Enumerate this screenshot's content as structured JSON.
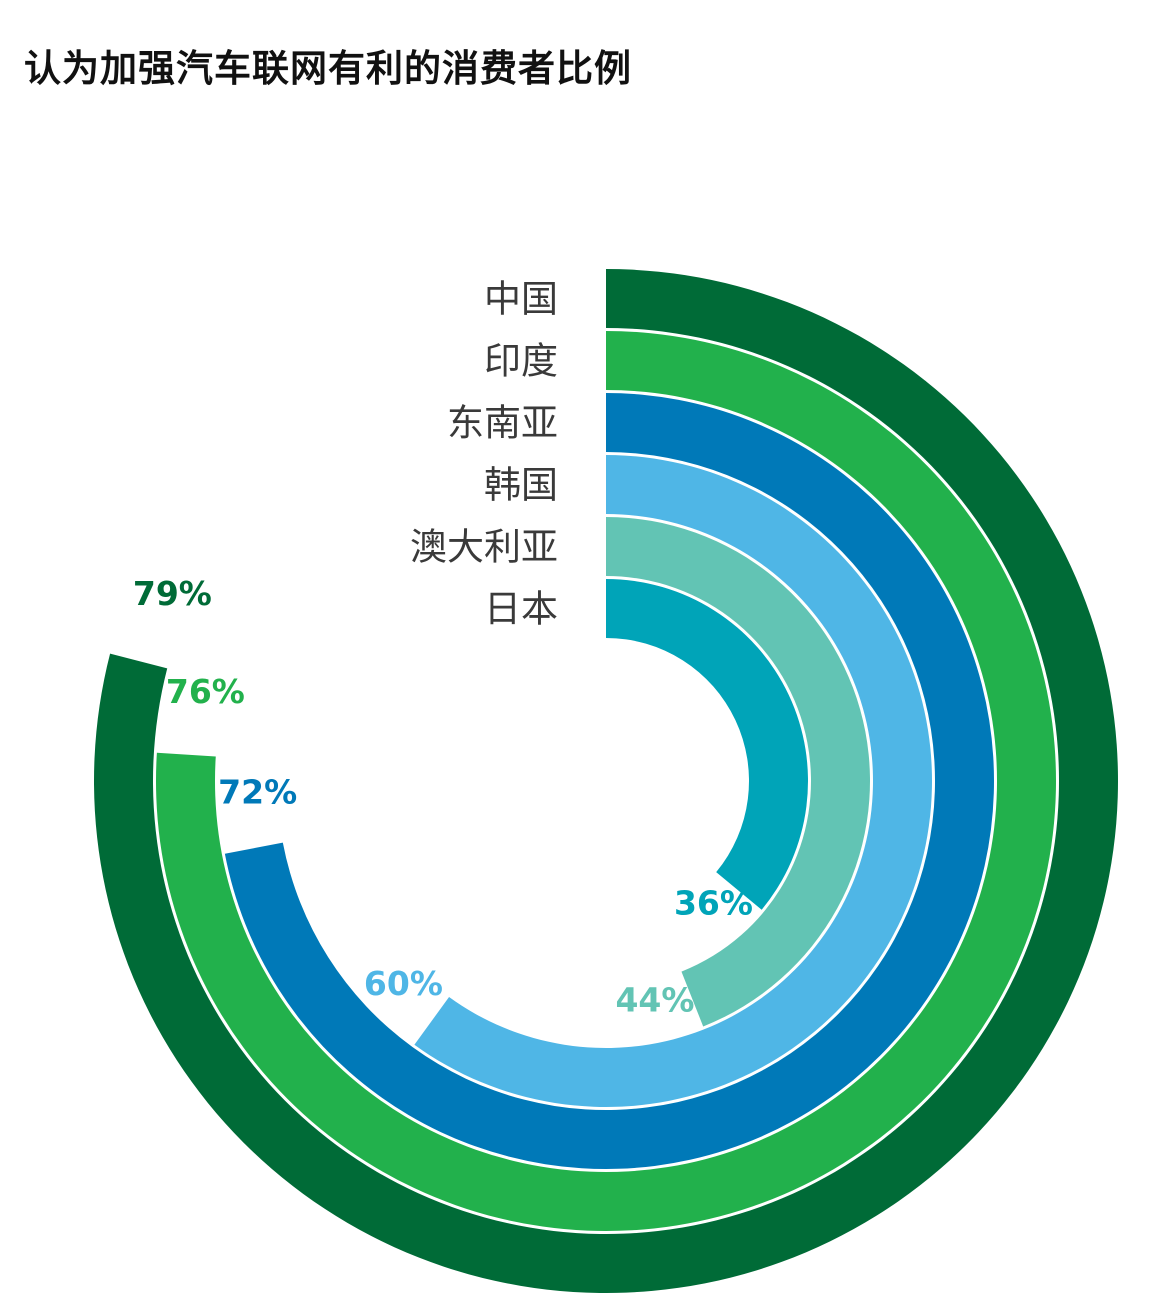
{
  "title": "认为加强汽车联网有利的消费者比例",
  "chart_data": {
    "type": "radial-bar",
    "title": "认为加强汽车联网有利的消费者比例",
    "unit": "%",
    "categories": [
      "中国",
      "印度",
      "东南亚",
      "韩国",
      "澳大利亚",
      "日本"
    ],
    "values": [
      79,
      76,
      72,
      60,
      44,
      36
    ],
    "value_labels": [
      "79%",
      "76%",
      "72%",
      "60%",
      "44%",
      "36%"
    ],
    "colors": [
      "#006b37",
      "#22b14c",
      "#0079b8",
      "#4fb6e6",
      "#62c4b4",
      "#00a4b8"
    ]
  }
}
